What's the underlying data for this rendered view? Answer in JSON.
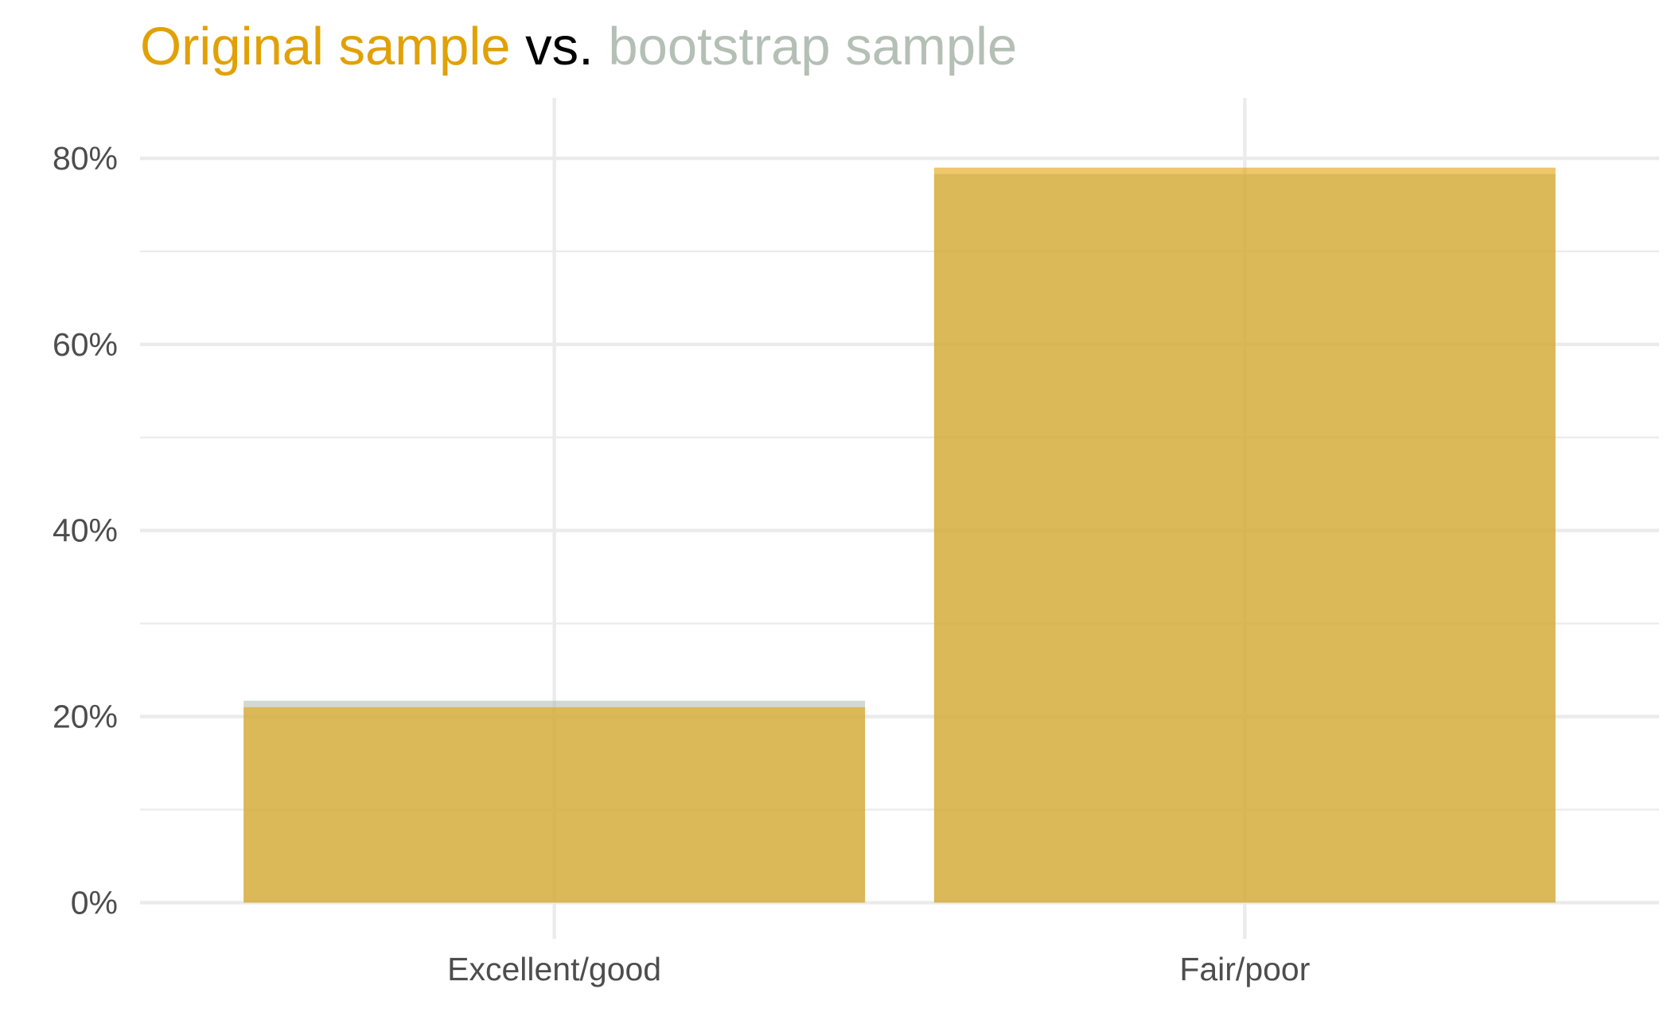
{
  "title": {
    "part_original": "Original sample",
    "part_vs": " vs. ",
    "part_bootstrap": "bootstrap sample"
  },
  "colors": {
    "original": "#E1A106",
    "bootstrap": "#B4BFB5",
    "title_vs": "#000000",
    "grid": "#EBEBEB",
    "tick_text": "#4D4D4D"
  },
  "chart_data": {
    "type": "bar",
    "categories": [
      "Excellent/good",
      "Fair/poor"
    ],
    "series": [
      {
        "name": "Original sample",
        "values": [
          21,
          79
        ]
      },
      {
        "name": "bootstrap sample",
        "values": [
          21.7,
          78.3
        ]
      }
    ],
    "ylim": [
      -3.9,
      86.5
    ],
    "yticks": [
      0,
      20,
      40,
      60,
      80
    ],
    "ytick_labels": [
      "0%",
      "20%",
      "40%",
      "60%",
      "80%"
    ],
    "yminor": [
      10,
      30,
      50,
      70
    ],
    "xlabel": "",
    "ylabel": "",
    "grid": true,
    "bars_overlaid": true,
    "bar_opacity": 0.6
  }
}
